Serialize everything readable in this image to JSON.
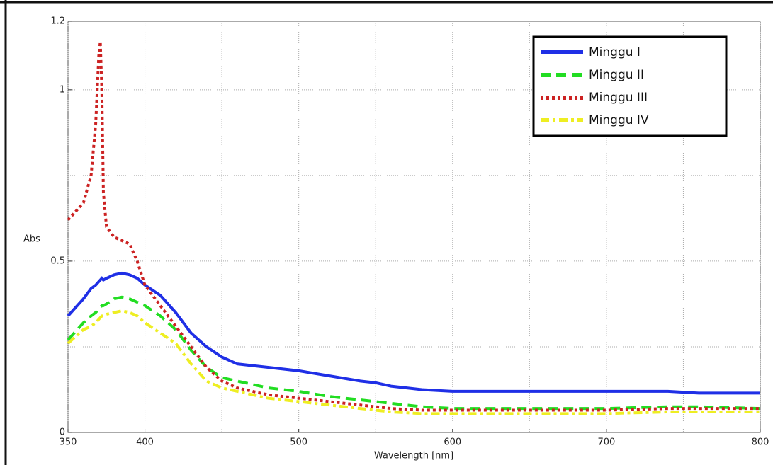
{
  "chart_data": {
    "type": "line",
    "xlabel": "Wavelength [nm]",
    "ylabel": "Abs",
    "x": [
      350,
      360,
      365,
      368,
      370,
      371,
      372,
      373,
      375,
      380,
      385,
      390,
      395,
      400,
      410,
      420,
      430,
      440,
      450,
      460,
      470,
      480,
      500,
      520,
      540,
      550,
      560,
      580,
      600,
      650,
      700,
      740,
      760,
      800
    ],
    "series": [
      {
        "name": "Minggu I",
        "color": "#1f2fe6",
        "style": "solid",
        "values": [
          0.34,
          0.39,
          0.42,
          0.43,
          0.44,
          0.445,
          0.45,
          0.445,
          0.45,
          0.46,
          0.465,
          0.46,
          0.45,
          0.43,
          0.4,
          0.35,
          0.29,
          0.25,
          0.22,
          0.2,
          0.195,
          0.19,
          0.18,
          0.165,
          0.15,
          0.145,
          0.135,
          0.125,
          0.12,
          0.12,
          0.12,
          0.12,
          0.115,
          0.115
        ]
      },
      {
        "name": "Minggu II",
        "color": "#22dd22",
        "style": "dashed",
        "values": [
          0.27,
          0.32,
          0.34,
          0.35,
          0.36,
          0.365,
          0.37,
          0.37,
          0.375,
          0.39,
          0.395,
          0.39,
          0.38,
          0.37,
          0.34,
          0.3,
          0.24,
          0.19,
          0.16,
          0.15,
          0.14,
          0.13,
          0.12,
          0.105,
          0.095,
          0.09,
          0.085,
          0.075,
          0.07,
          0.07,
          0.07,
          0.075,
          0.075,
          0.07
        ]
      },
      {
        "name": "Minggu III",
        "color": "#cc2222",
        "style": "dotted",
        "values": [
          0.62,
          0.67,
          0.75,
          0.9,
          1.1,
          1.14,
          1.0,
          0.7,
          0.6,
          0.57,
          0.56,
          0.55,
          0.5,
          0.43,
          0.37,
          0.31,
          0.25,
          0.19,
          0.15,
          0.13,
          0.12,
          0.11,
          0.1,
          0.09,
          0.08,
          0.075,
          0.07,
          0.065,
          0.065,
          0.065,
          0.065,
          0.07,
          0.07,
          0.07
        ]
      },
      {
        "name": "Minggu IV",
        "color": "#eeee22",
        "style": "dashdot",
        "values": [
          0.26,
          0.3,
          0.31,
          0.32,
          0.33,
          0.335,
          0.34,
          0.34,
          0.345,
          0.35,
          0.355,
          0.35,
          0.34,
          0.32,
          0.29,
          0.26,
          0.2,
          0.15,
          0.13,
          0.12,
          0.11,
          0.1,
          0.09,
          0.08,
          0.07,
          0.065,
          0.06,
          0.055,
          0.055,
          0.055,
          0.055,
          0.06,
          0.06,
          0.06
        ]
      }
    ],
    "xlim": [
      350,
      800
    ],
    "xticks": [
      350,
      400,
      500,
      600,
      700,
      800
    ],
    "xgrid": [
      350,
      400,
      450,
      500,
      550,
      600,
      650,
      700,
      750,
      800
    ],
    "ylim": [
      0,
      1.2
    ],
    "yticks": [
      0,
      0.5,
      1,
      1.2
    ],
    "ygrid": [
      0.25,
      0.5,
      0.75,
      1
    ],
    "grid": true,
    "legend": "upper right"
  }
}
